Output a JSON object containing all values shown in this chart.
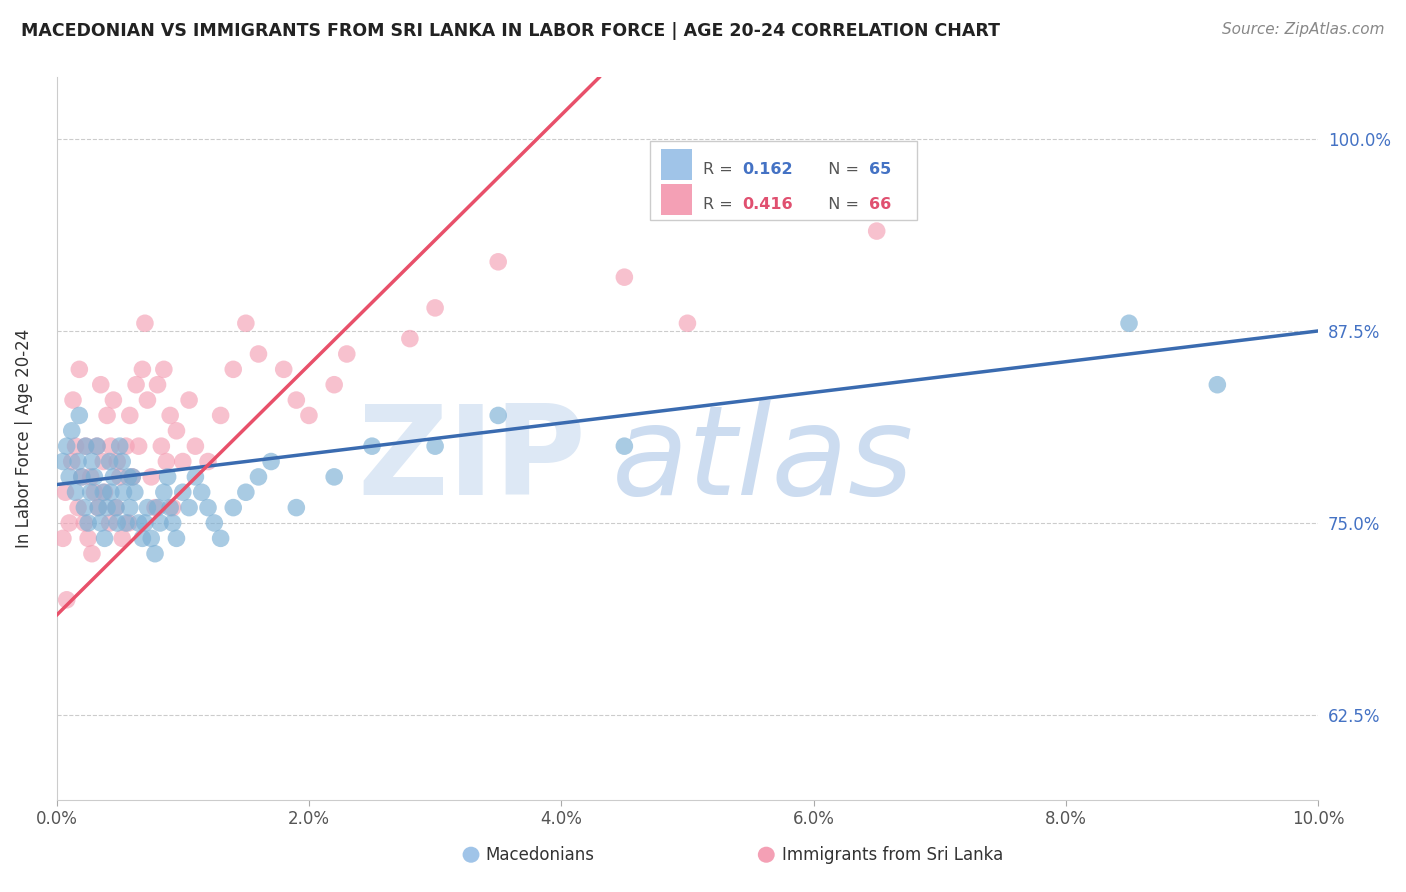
{
  "title": "MACEDONIAN VS IMMIGRANTS FROM SRI LANKA IN LABOR FORCE | AGE 20-24 CORRELATION CHART",
  "source": "Source: ZipAtlas.com",
  "ylabel_label": "In Labor Force | Age 20-24",
  "xlim": [
    0.0,
    10.0
  ],
  "ylim": [
    57.0,
    104.0
  ],
  "blue_color": "#7bafd4",
  "pink_color": "#f4a0b5",
  "trend_blue_color": "#3a6bb0",
  "trend_pink_color": "#e8506a",
  "legend_r_blue": "0.162",
  "legend_n_blue": "65",
  "legend_r_pink": "0.416",
  "legend_n_pink": "66",
  "blue_line_x0": 0.0,
  "blue_line_y0": 77.5,
  "blue_line_x1": 10.0,
  "blue_line_y1": 87.5,
  "pink_line_x0": 0.0,
  "pink_line_y0": 69.0,
  "pink_line_x1": 3.8,
  "pink_line_y1": 100.0,
  "macedonians_x": [
    0.05,
    0.08,
    0.1,
    0.12,
    0.15,
    0.17,
    0.18,
    0.2,
    0.22,
    0.23,
    0.25,
    0.27,
    0.28,
    0.3,
    0.32,
    0.33,
    0.35,
    0.37,
    0.38,
    0.4,
    0.42,
    0.43,
    0.45,
    0.47,
    0.48,
    0.5,
    0.52,
    0.53,
    0.55,
    0.57,
    0.58,
    0.6,
    0.62,
    0.65,
    0.68,
    0.7,
    0.72,
    0.75,
    0.78,
    0.8,
    0.82,
    0.85,
    0.88,
    0.9,
    0.92,
    0.95,
    1.0,
    1.05,
    1.1,
    1.15,
    1.2,
    1.25,
    1.3,
    1.4,
    1.5,
    1.6,
    1.7,
    1.9,
    2.2,
    2.5,
    3.0,
    3.5,
    4.5,
    8.5,
    9.2
  ],
  "macedonians_y": [
    79,
    80,
    78,
    81,
    77,
    79,
    82,
    78,
    76,
    80,
    75,
    77,
    79,
    78,
    80,
    76,
    75,
    77,
    74,
    76,
    79,
    77,
    78,
    76,
    75,
    80,
    79,
    77,
    75,
    78,
    76,
    78,
    77,
    75,
    74,
    75,
    76,
    74,
    73,
    76,
    75,
    77,
    78,
    76,
    75,
    74,
    77,
    76,
    78,
    77,
    76,
    75,
    74,
    76,
    77,
    78,
    79,
    76,
    78,
    80,
    80,
    82,
    80,
    88,
    84
  ],
  "srilanka_x": [
    0.05,
    0.07,
    0.08,
    0.1,
    0.12,
    0.13,
    0.15,
    0.17,
    0.18,
    0.2,
    0.22,
    0.23,
    0.25,
    0.27,
    0.28,
    0.3,
    0.32,
    0.33,
    0.35,
    0.37,
    0.38,
    0.4,
    0.42,
    0.43,
    0.45,
    0.47,
    0.48,
    0.5,
    0.52,
    0.55,
    0.57,
    0.58,
    0.6,
    0.63,
    0.65,
    0.68,
    0.7,
    0.72,
    0.75,
    0.78,
    0.8,
    0.83,
    0.85,
    0.87,
    0.9,
    0.92,
    0.95,
    1.0,
    1.05,
    1.1,
    1.2,
    1.3,
    1.4,
    1.5,
    1.6,
    1.8,
    2.0,
    2.3,
    2.8,
    3.5,
    4.5,
    5.0,
    6.5,
    2.2,
    1.9,
    3.0
  ],
  "srilanka_y": [
    74,
    77,
    70,
    75,
    79,
    83,
    80,
    76,
    85,
    78,
    75,
    80,
    74,
    78,
    73,
    77,
    80,
    76,
    84,
    79,
    77,
    82,
    75,
    80,
    83,
    76,
    79,
    78,
    74,
    80,
    75,
    82,
    78,
    84,
    80,
    85,
    88,
    83,
    78,
    76,
    84,
    80,
    85,
    79,
    82,
    76,
    81,
    79,
    83,
    80,
    79,
    82,
    85,
    88,
    86,
    85,
    82,
    86,
    87,
    92,
    91,
    88,
    94,
    84,
    83,
    89
  ]
}
